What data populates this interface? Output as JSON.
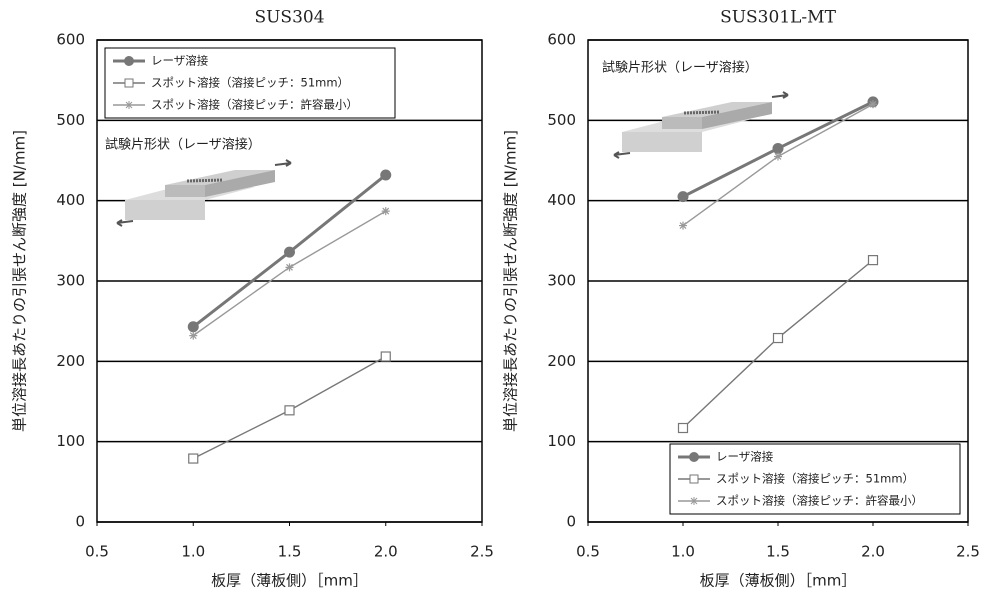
{
  "chart_data": [
    {
      "type": "line",
      "title": "SUS304",
      "x_label": "板厚（薄板側）［mm］",
      "y_label": "単位溶接長あたりの引張せん断強度 [N/mm]",
      "annotation": "試験片形状（レーザ溶接）",
      "x": [
        1.0,
        1.5,
        2.0
      ],
      "series": [
        {
          "name": "レーザ溶接",
          "color": "#777777",
          "marker": "circle",
          "values": [
            243,
            336,
            432
          ]
        },
        {
          "name": "スポット溶接（溶接ピッチ：51mm）",
          "color": "#777777",
          "marker": "square",
          "values": [
            79,
            139,
            206
          ]
        },
        {
          "name": "スポット溶接（溶接ピッチ：許容最小）",
          "color": "#999999",
          "marker": "star",
          "values": [
            232,
            317,
            387
          ]
        }
      ],
      "xlim": [
        0.5,
        2.5
      ],
      "xticks": [
        0.5,
        {
          "value": 1.0,
          "label": "1.0"
        },
        1.5,
        {
          "value": 2.0,
          "label": "2.0"
        },
        2.5
      ],
      "ylim": [
        0,
        600
      ],
      "yticks": [
        0,
        100,
        200,
        300,
        400,
        500,
        600
      ],
      "grid": true,
      "legend": "upper left"
    },
    {
      "type": "line",
      "title": "SUS301L-MT",
      "x_label": "板厚（薄板側）［mm］",
      "y_label": "単位溶接長あたりの引張せん断強度 [N/mm]",
      "annotation": "試験片形状（レーザ溶接）",
      "x": [
        1.0,
        1.5,
        2.0
      ],
      "series": [
        {
          "name": "レーザ溶接",
          "color": "#777777",
          "marker": "circle",
          "values": [
            405,
            465,
            523
          ]
        },
        {
          "name": "スポット溶接（溶接ピッチ：51mm）",
          "color": "#777777",
          "marker": "square",
          "values": [
            117,
            229,
            326
          ]
        },
        {
          "name": "スポット溶接（溶接ピッチ：許容最小）",
          "color": "#999999",
          "marker": "star",
          "values": [
            369,
            455,
            520
          ]
        }
      ],
      "xlim": [
        0.5,
        2.5
      ],
      "xticks": [
        0.5,
        {
          "value": 1.0,
          "label": "1.0"
        },
        1.5,
        {
          "value": 2.0,
          "label": "2.0"
        },
        2.5
      ],
      "ylim": [
        0,
        600
      ],
      "yticks": [
        0,
        100,
        200,
        300,
        400,
        500,
        600
      ],
      "grid": true,
      "legend": "lower right"
    }
  ]
}
